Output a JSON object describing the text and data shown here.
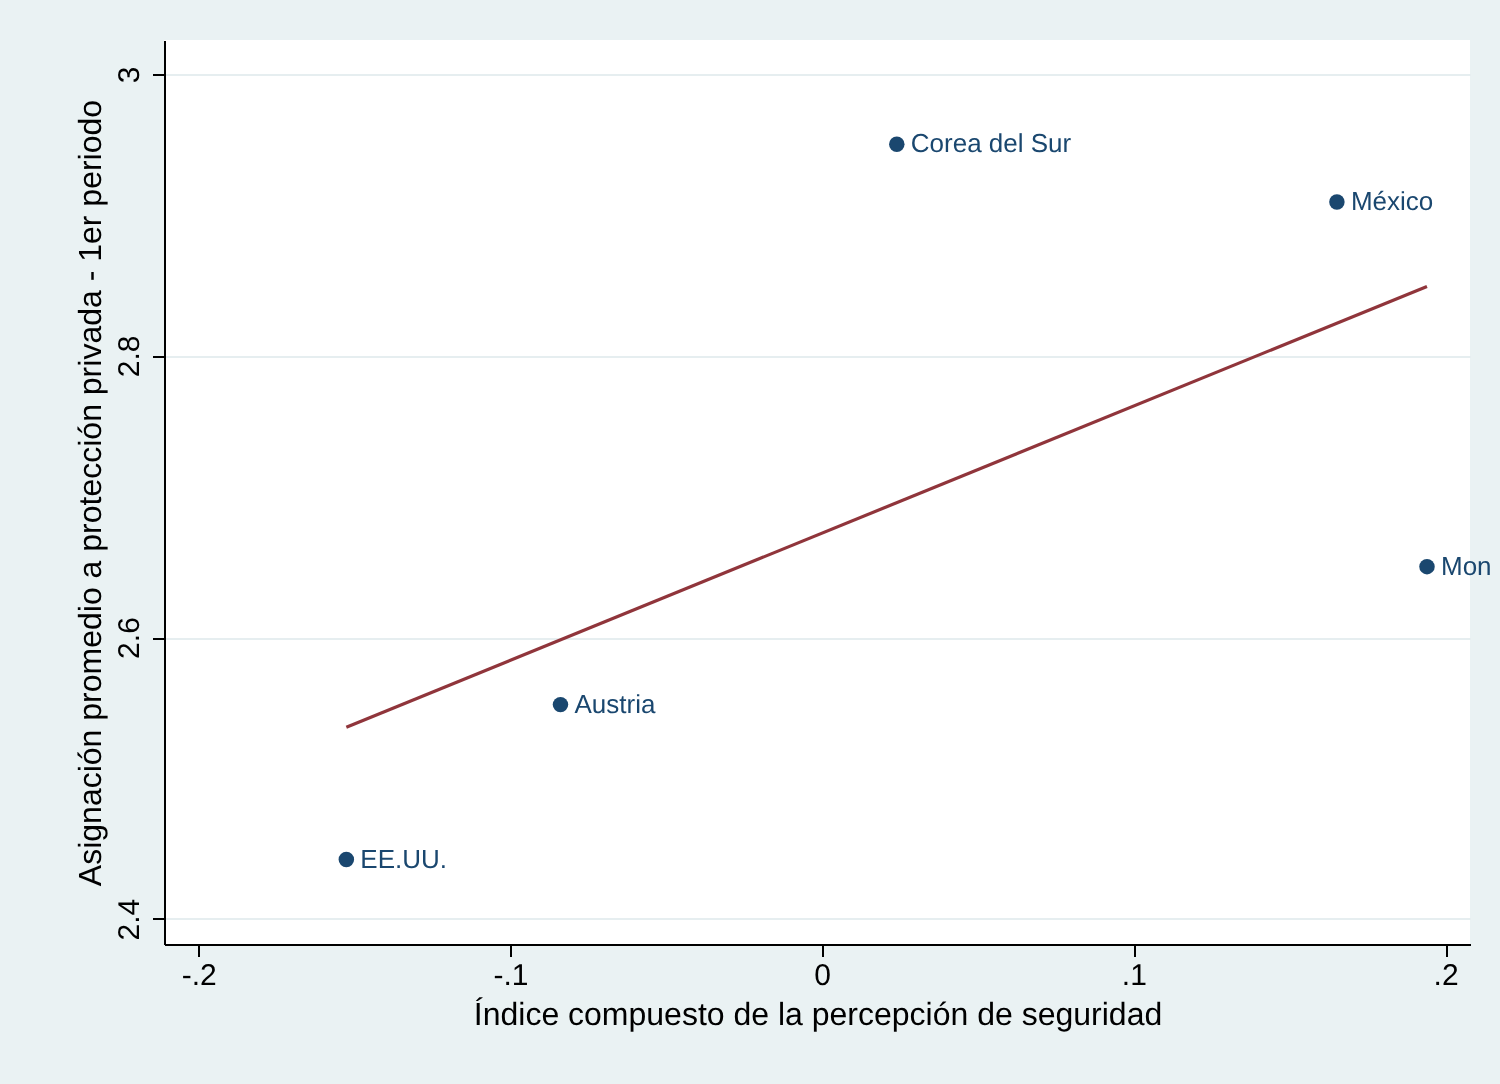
{
  "chart_data": {
    "type": "scatter",
    "xlabel": "Índice compuesto de la percepción de seguridad",
    "ylabel": "Asignación promedio a protección privada - 1er periodo",
    "series": [
      {
        "color": "#1a476f",
        "x": [
          -0.1525,
          -0.0838,
          0.0241,
          0.1653,
          0.1942
        ],
        "values": [
          2.442,
          2.552,
          2.95,
          2.909,
          2.65
        ]
      },
      {
        "type": "line",
        "marker": "none",
        "color": "#90353b",
        "x": [
          -0.1525,
          0.1942
        ],
        "values": [
          2.536,
          2.849
        ]
      }
    ],
    "annotations": [
      {
        "text": "EE.UU.",
        "x": -0.1525,
        "y": 2.442
      },
      {
        "text": "Austria",
        "x": -0.0838,
        "y": 2.552
      },
      {
        "text": "Corea del Sur",
        "x": 0.0241,
        "y": 2.95
      },
      {
        "text": "México",
        "x": 0.1653,
        "y": 2.909
      },
      {
        "text": "Mon",
        "x": 0.1942,
        "y": 2.65
      }
    ],
    "xlim": [
      -0.211,
      0.208
    ],
    "xticks": [
      {
        "value": -0.2,
        "label": "-.2"
      },
      {
        "value": -0.1,
        "label": "-.1"
      },
      0,
      {
        "value": 0.1,
        "label": ".1"
      },
      {
        "value": 0.2,
        "label": ".2"
      }
    ],
    "ylim": [
      2.382,
      3.024
    ],
    "yticks": [
      2.4,
      2.6,
      2.8,
      3
    ],
    "grid": "y",
    "marker": "circle"
  }
}
